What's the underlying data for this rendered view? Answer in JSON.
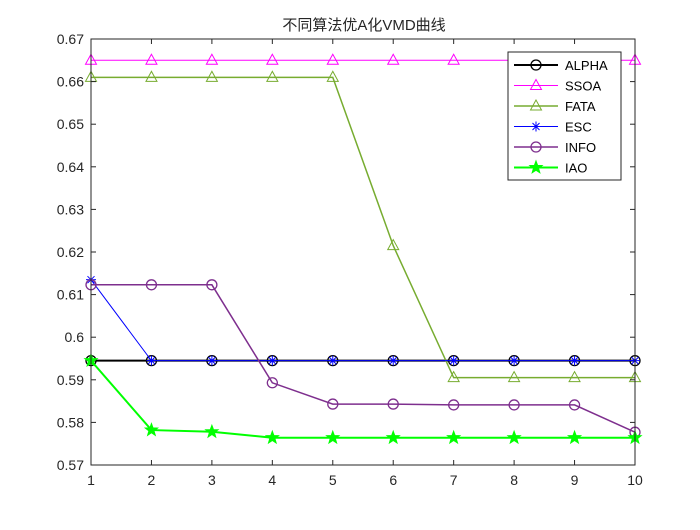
{
  "chart_data": {
    "type": "line",
    "title": "不同算法优A化VMD曲线",
    "xlabel": "",
    "ylabel": "",
    "x": [
      1,
      2,
      3,
      4,
      5,
      6,
      7,
      8,
      9,
      10
    ],
    "xlim": [
      1,
      10
    ],
    "ylim": [
      0.57,
      0.67
    ],
    "xticks": [
      1,
      2,
      3,
      4,
      5,
      6,
      7,
      8,
      9,
      10
    ],
    "yticks": [
      0.57,
      0.58,
      0.59,
      0.6,
      0.61,
      0.62,
      0.63,
      0.64,
      0.65,
      0.66,
      0.67
    ],
    "grid": false,
    "legend_position": "top-right",
    "series": [
      {
        "name": "ALPHA",
        "color": "#000000",
        "marker": "circle",
        "linewidth": 2,
        "values": [
          0.5945,
          0.5945,
          0.5945,
          0.5945,
          0.5945,
          0.5945,
          0.5945,
          0.5945,
          0.5945,
          0.5945
        ]
      },
      {
        "name": "SSOA",
        "color": "#ff00ff",
        "marker": "triangle",
        "linewidth": 1,
        "values": [
          0.665,
          0.665,
          0.665,
          0.665,
          0.665,
          0.665,
          0.665,
          0.665,
          0.665,
          0.665
        ]
      },
      {
        "name": "FATA",
        "color": "#77ac30",
        "marker": "triangle",
        "linewidth": 1.5,
        "values": [
          0.661,
          0.661,
          0.661,
          0.661,
          0.661,
          0.6215,
          0.5905,
          0.5905,
          0.5905,
          0.5905
        ]
      },
      {
        "name": "ESC",
        "color": "#0000ff",
        "marker": "asterisk",
        "linewidth": 1,
        "values": [
          0.6135,
          0.5945,
          0.5945,
          0.5945,
          0.5945,
          0.5945,
          0.5945,
          0.5945,
          0.5945,
          0.5945
        ]
      },
      {
        "name": "INFO",
        "color": "#7e2f8e",
        "marker": "circle",
        "linewidth": 1.5,
        "values": [
          0.6123,
          0.6123,
          0.6123,
          0.5893,
          0.5843,
          0.5843,
          0.5841,
          0.5841,
          0.5841,
          0.5777
        ]
      },
      {
        "name": "IAO",
        "color": "#00ff00",
        "marker": "star",
        "linewidth": 2,
        "values": [
          0.5945,
          0.5782,
          0.5778,
          0.5764,
          0.5764,
          0.5764,
          0.5764,
          0.5764,
          0.5764,
          0.5764
        ]
      }
    ]
  }
}
